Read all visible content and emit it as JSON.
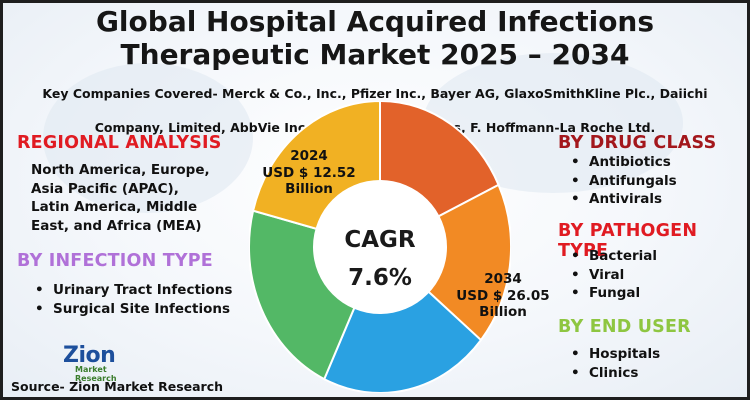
{
  "title": {
    "line1": "Global Hospital Acquired Infections",
    "line2": "Therapeutic Market 2025 – 2034"
  },
  "companies": {
    "line1": "Key Companies Covered- Merck & Co., Inc., Pfizer Inc., Bayer AG, GlaxoSmithKline Plc., Daiichi Sankyo",
    "line2": "Company, Limited, AbbVie Inc., Abbott Laboratories, F. Hoffmann-La Roche Ltd."
  },
  "regional": {
    "heading": "REGIONAL ANALYSIS",
    "lines": [
      "North America, Europe,",
      "Asia Pacific (APAC),",
      "Latin America, Middle",
      "East, and Africa (MEA)"
    ]
  },
  "infection_type": {
    "heading": "BY INFECTION TYPE",
    "items": [
      "Urinary Tract Infections",
      "Surgical Site Infections"
    ]
  },
  "drug_class": {
    "heading": "BY DRUG CLASS",
    "items": [
      "Antibiotics",
      "Antifungals",
      "Antivirals"
    ]
  },
  "pathogen_type": {
    "heading": "BY PATHOGEN TYPE",
    "items": [
      "Bacterial",
      "Viral",
      "Fungal"
    ]
  },
  "end_user": {
    "heading": "BY END USER",
    "items": [
      "Hospitals",
      "Clinics"
    ]
  },
  "chart": {
    "value_2024": {
      "year": "2024",
      "amount": "USD $ 12.52",
      "unit": "Billion"
    },
    "value_2034": {
      "year": "2034",
      "amount": "USD $ 26.05",
      "unit": "Billion"
    },
    "cagr_label": "CAGR",
    "cagr_value": "7.6%"
  },
  "pie": {
    "slices": [
      {
        "name": "orange-dark",
        "share": 0.18,
        "color": "#e2622a"
      },
      {
        "name": "orange-light",
        "share": 0.18,
        "color": "#f28a24"
      },
      {
        "name": "blue",
        "share": 0.21,
        "color": "#2aa1e2"
      },
      {
        "name": "green",
        "share": 0.22,
        "color": "#53b866"
      },
      {
        "name": "yellow",
        "share": 0.21,
        "color": "#f1b123"
      }
    ]
  },
  "logo": {
    "text": "Zion",
    "subtext": "Market Research"
  },
  "source": "Source- Zion Market Research",
  "colors": {
    "red_heading": "#e01b22",
    "purple_heading": "#b071d8",
    "maroon_heading": "#a3171c",
    "green_heading": "#8ec641",
    "border": "#1e1e1e"
  }
}
